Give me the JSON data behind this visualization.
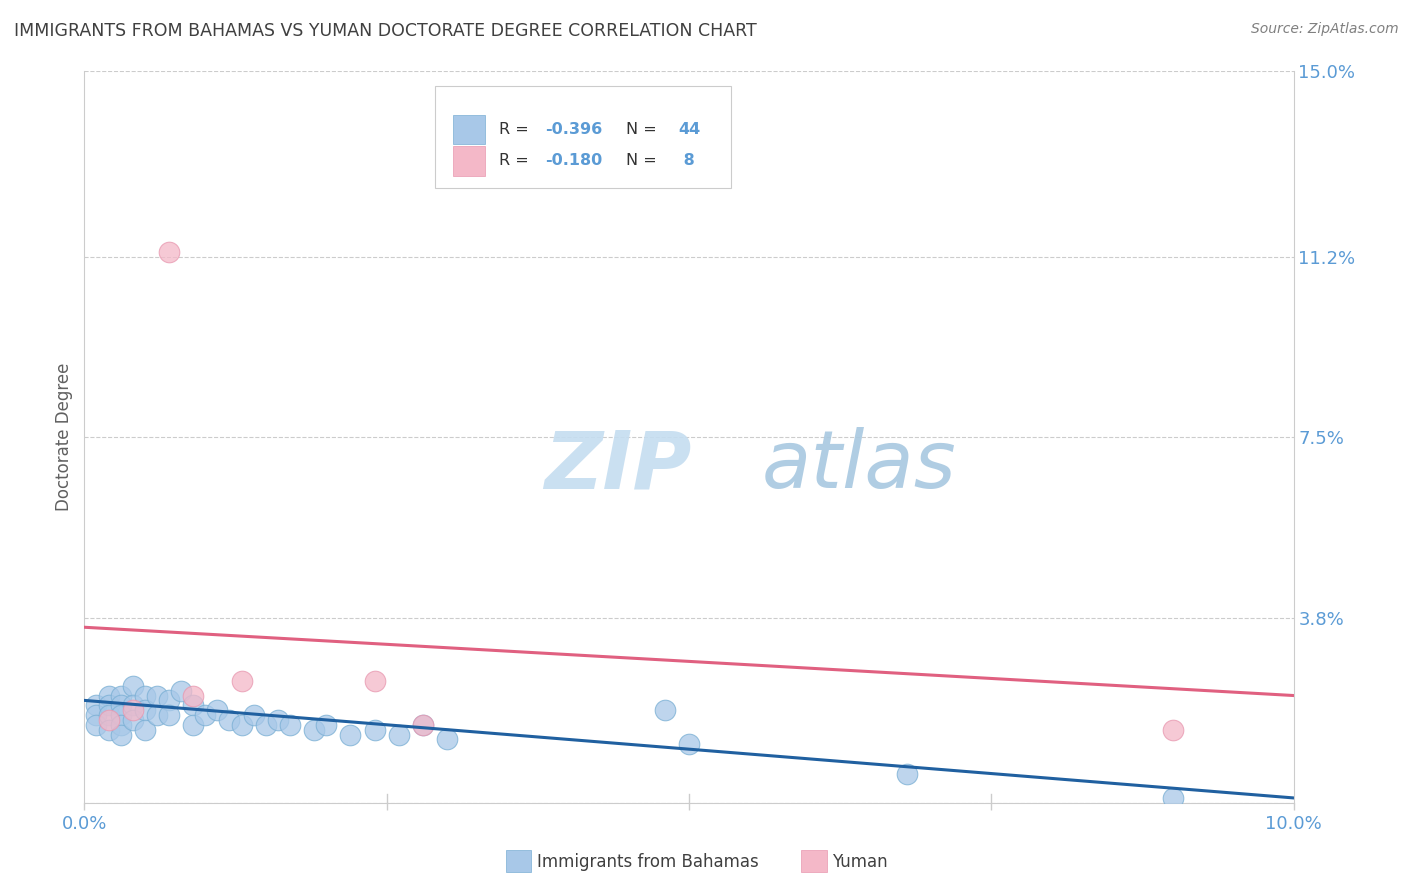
{
  "title": "IMMIGRANTS FROM BAHAMAS VS YUMAN DOCTORATE DEGREE CORRELATION CHART",
  "source": "Source: ZipAtlas.com",
  "ylabel": "Doctorate Degree",
  "xlim": [
    0.0,
    0.1
  ],
  "ylim": [
    0.0,
    0.15
  ],
  "ytick_vals": [
    0.0,
    0.038,
    0.075,
    0.112,
    0.15
  ],
  "ytick_labels": [
    "",
    "3.8%",
    "7.5%",
    "11.2%",
    "15.0%"
  ],
  "xtick_vals": [
    0.0,
    0.025,
    0.05,
    0.075,
    0.1
  ],
  "xtick_labels": [
    "0.0%",
    "",
    "",
    "",
    "10.0%"
  ],
  "blue_color": "#a8c8e8",
  "blue_edge_color": "#7aafd4",
  "pink_color": "#f4b8c8",
  "pink_edge_color": "#e898b0",
  "blue_line_color": "#2060a0",
  "pink_line_color": "#e06080",
  "axis_label_color": "#5b9bd5",
  "watermark_color": "#ddeef8",
  "grid_color": "#cccccc",
  "title_color": "#404040",
  "source_color": "#808080",
  "ylabel_color": "#606060",
  "legend_box_color": "#f0f0f0",
  "legend_border_color": "#cccccc",
  "bottom_label_color": "#404040",
  "blue_scatter_x": [
    0.001,
    0.001,
    0.001,
    0.002,
    0.002,
    0.002,
    0.002,
    0.003,
    0.003,
    0.003,
    0.003,
    0.003,
    0.004,
    0.004,
    0.004,
    0.005,
    0.005,
    0.005,
    0.006,
    0.006,
    0.007,
    0.007,
    0.008,
    0.009,
    0.009,
    0.01,
    0.011,
    0.012,
    0.013,
    0.014,
    0.015,
    0.016,
    0.017,
    0.019,
    0.02,
    0.022,
    0.024,
    0.026,
    0.028,
    0.03,
    0.048,
    0.05,
    0.068,
    0.09
  ],
  "blue_scatter_y": [
    0.02,
    0.018,
    0.016,
    0.022,
    0.02,
    0.018,
    0.015,
    0.022,
    0.02,
    0.018,
    0.016,
    0.014,
    0.024,
    0.02,
    0.017,
    0.022,
    0.019,
    0.015,
    0.022,
    0.018,
    0.021,
    0.018,
    0.023,
    0.02,
    0.016,
    0.018,
    0.019,
    0.017,
    0.016,
    0.018,
    0.016,
    0.017,
    0.016,
    0.015,
    0.016,
    0.014,
    0.015,
    0.014,
    0.016,
    0.013,
    0.019,
    0.012,
    0.006,
    0.001
  ],
  "pink_scatter_x": [
    0.002,
    0.004,
    0.007,
    0.009,
    0.013,
    0.024,
    0.028,
    0.09
  ],
  "pink_scatter_y": [
    0.017,
    0.019,
    0.113,
    0.022,
    0.025,
    0.025,
    0.016,
    0.015
  ],
  "blue_trend_x0": 0.0,
  "blue_trend_y0": 0.021,
  "blue_trend_x1": 0.1,
  "blue_trend_y1": 0.001,
  "pink_trend_x0": 0.0,
  "pink_trend_y0": 0.036,
  "pink_trend_x1": 0.1,
  "pink_trend_y1": 0.022,
  "watermark_zip": "ZIP",
  "watermark_atlas": "atlas",
  "bottom_label1": "Immigrants from Bahamas",
  "bottom_label2": "Yuman"
}
